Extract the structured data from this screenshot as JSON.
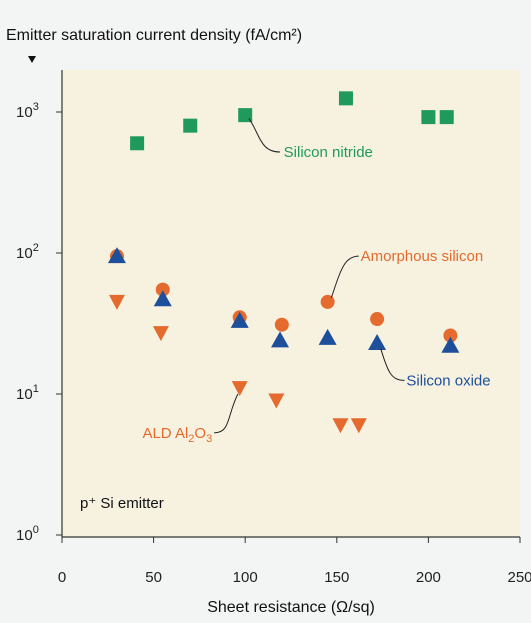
{
  "chart_data": {
    "type": "scatter",
    "title": "Emitter saturation current density (fA/cm²)",
    "xlabel": "Sheet resistance (Ω/sq)",
    "ylabel": "",
    "xlim": [
      0,
      250
    ],
    "ylim": [
      1,
      2000
    ],
    "y_scale": "log",
    "x_ticks": [
      "0",
      "50",
      "100",
      "150",
      "200",
      "250"
    ],
    "y_ticks": [
      {
        "base": "10",
        "exp": "0"
      },
      {
        "base": "10",
        "exp": "1"
      },
      {
        "base": "10",
        "exp": "2"
      },
      {
        "base": "10",
        "exp": "3"
      }
    ],
    "grid": false,
    "panel_label": "p⁺ Si emitter",
    "series": [
      {
        "name": "Silicon nitride",
        "marker": "square",
        "color": "#1f9a5c",
        "points": [
          [
            41,
            600
          ],
          [
            70,
            800
          ],
          [
            100,
            950
          ],
          [
            155,
            1250
          ],
          [
            200,
            920
          ],
          [
            210,
            920
          ]
        ]
      },
      {
        "name": "Amorphous silicon",
        "marker": "circle",
        "color": "#e46a2e",
        "points": [
          [
            30,
            95
          ],
          [
            55,
            55
          ],
          [
            97,
            35
          ],
          [
            120,
            31
          ],
          [
            145,
            45
          ],
          [
            172,
            34
          ],
          [
            212,
            26
          ]
        ]
      },
      {
        "name": "Silicon oxide",
        "marker": "triangle-up",
        "color": "#1d4f9b",
        "points": [
          [
            30,
            95
          ],
          [
            55,
            47
          ],
          [
            97,
            33
          ],
          [
            119,
            24
          ],
          [
            145,
            25
          ],
          [
            172,
            23
          ],
          [
            212,
            22
          ]
        ]
      },
      {
        "name": "ALD Al₂O₃",
        "marker": "triangle-down",
        "color": "#e46a2e",
        "points": [
          [
            30,
            45
          ],
          [
            54,
            27
          ],
          [
            97,
            11
          ],
          [
            117,
            9
          ],
          [
            152,
            6
          ],
          [
            162,
            6
          ]
        ]
      }
    ],
    "annotations": [
      {
        "text": "Silicon nitride",
        "series": "Silicon nitride"
      },
      {
        "text": "Amorphous silicon",
        "series": "Amorphous silicon"
      },
      {
        "text": "Silicon oxide",
        "series": "Silicon oxide"
      },
      {
        "text_main": "ALD Al",
        "sub1": "2",
        "mid": "O",
        "sub2": "3",
        "series": "ALD Al₂O₃"
      }
    ]
  }
}
